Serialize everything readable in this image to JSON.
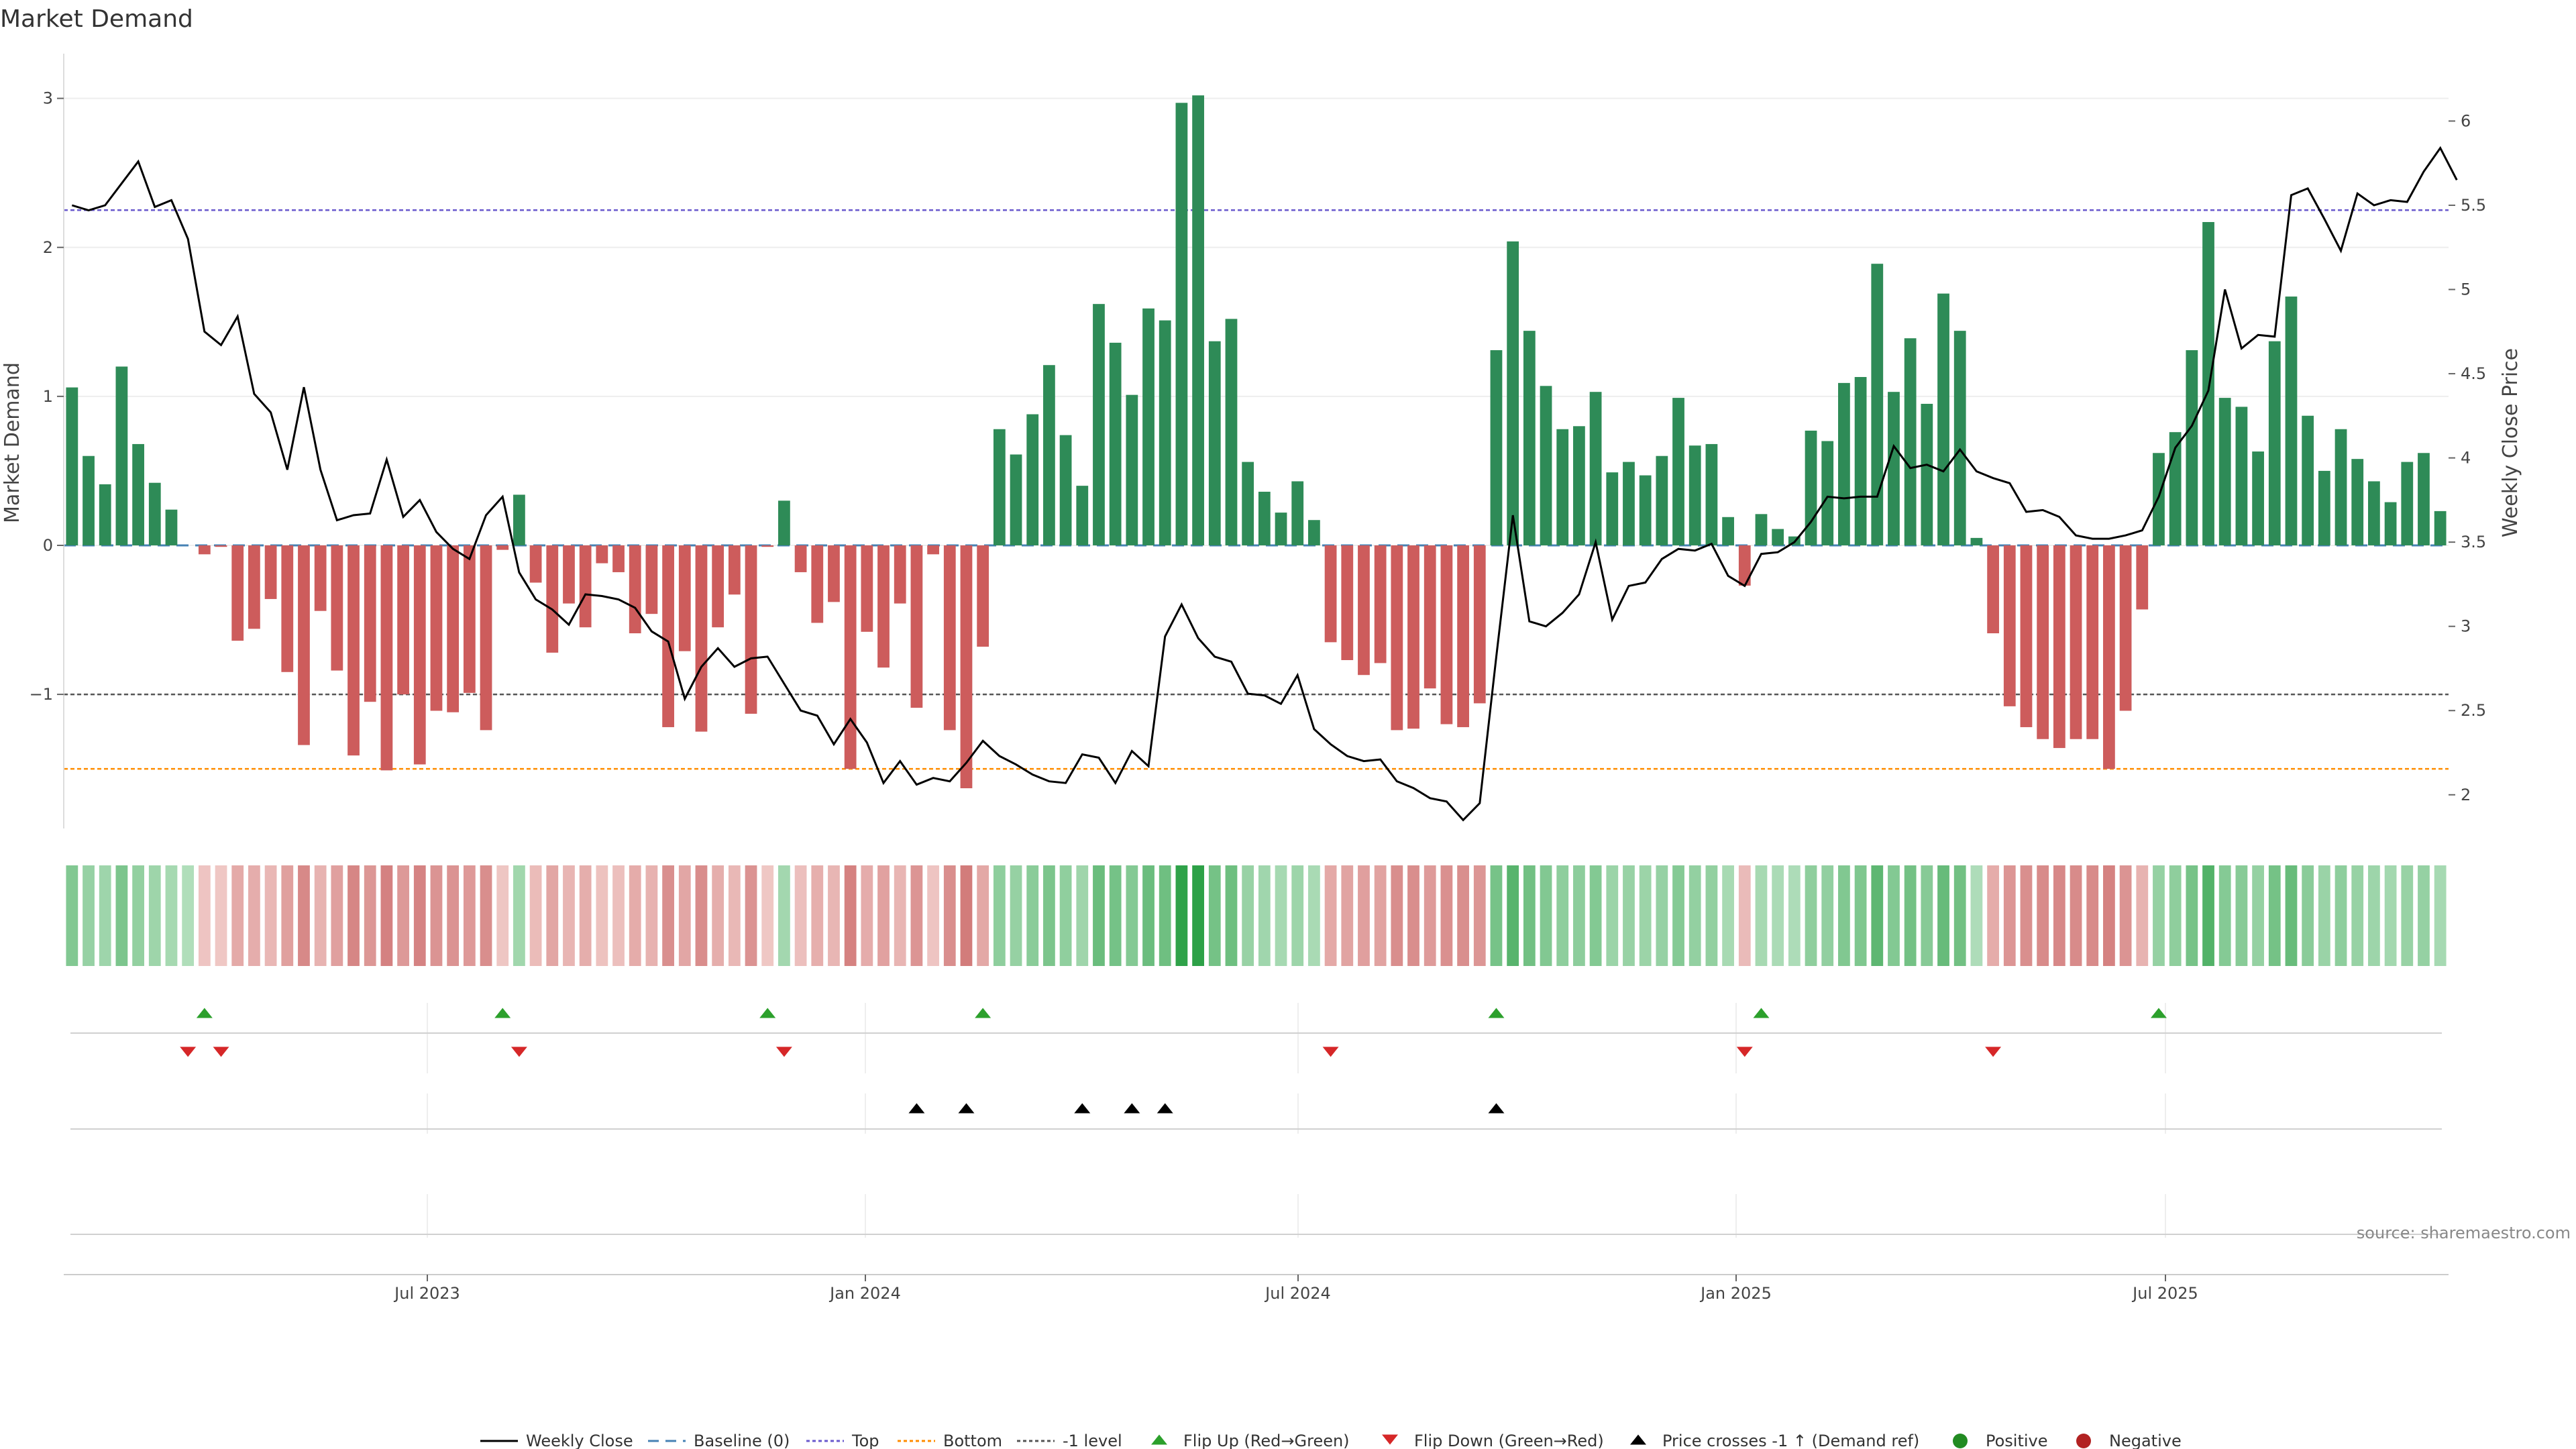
{
  "chart_data": {
    "type": "bar",
    "title": "Market Demand",
    "ylabel": "Market Demand",
    "y2label": "Weekly Close Price",
    "ylim": [
      -1.9,
      3.3
    ],
    "y2lim": [
      1.8,
      6.4
    ],
    "yticks": [
      "3",
      "2",
      "1",
      "0",
      "−1"
    ],
    "y2ticks": [
      "6",
      "5.5",
      "5",
      "4.5",
      "4",
      "3.5",
      "3",
      "2.5",
      "2"
    ],
    "xticks": [
      "Jul 2023",
      "Jan 2024",
      "Jul 2024",
      "Jan 2025",
      "Jul 2025"
    ],
    "reference_lines": {
      "top": 2.25,
      "baseline": 0,
      "bottom": -1.5,
      "minus_one": -1
    },
    "demand": [
      1.06,
      0.6,
      0.41,
      1.2,
      0.68,
      0.42,
      0.24,
      0,
      -0.06,
      -0.01,
      -0.64,
      -0.56,
      -0.36,
      -0.85,
      -1.34,
      -0.44,
      -0.84,
      -1.41,
      -1.05,
      -1.51,
      -1.0,
      -1.47,
      -1.11,
      -1.12,
      -0.99,
      -1.24,
      -0.03,
      0.34,
      -0.25,
      -0.72,
      -0.39,
      -0.55,
      -0.12,
      -0.18,
      -0.59,
      -0.46,
      -1.22,
      -0.71,
      -1.25,
      -0.55,
      -0.33,
      -1.13,
      -0.01,
      0.3,
      -0.18,
      -0.52,
      -0.38,
      -1.5,
      -0.58,
      -0.82,
      -0.39,
      -1.09,
      -0.06,
      -1.24,
      -1.63,
      -0.68,
      0.78,
      0.61,
      0.88,
      1.21,
      0.74,
      0.4,
      1.62,
      1.36,
      1.01,
      1.59,
      1.51,
      2.97,
      3.02,
      1.37,
      1.52,
      0.56,
      0.36,
      0.22,
      0.43,
      0.17,
      -0.65,
      -0.77,
      -0.87,
      -0.79,
      -1.24,
      -1.23,
      -0.96,
      -1.2,
      -1.22,
      -1.06,
      1.31,
      2.04,
      1.44,
      1.07,
      0.78,
      0.8,
      1.03,
      0.49,
      0.56,
      0.47,
      0.6,
      0.99,
      0.67,
      0.68,
      0.19,
      -0.27,
      0.21,
      0.11,
      0.06,
      0.77,
      0.7,
      1.09,
      1.13,
      1.89,
      1.03,
      1.39,
      0.95,
      1.69,
      1.44,
      0.05,
      -0.59,
      -1.08,
      -1.22,
      -1.3,
      -1.36,
      -1.3,
      -1.3,
      -1.5,
      -1.11,
      -0.43,
      0.62,
      0.76,
      1.31,
      2.17,
      0.99,
      0.93,
      0.63,
      1.37,
      1.67,
      0.87,
      0.5,
      0.78,
      0.58,
      0.43,
      0.29,
      0.56,
      0.62,
      0.23
    ],
    "close": [
      5.5,
      5.47,
      5.5,
      5.63,
      5.76,
      5.49,
      5.53,
      5.3,
      4.75,
      4.67,
      4.84,
      4.38,
      4.27,
      3.93,
      4.42,
      3.93,
      3.63,
      3.66,
      3.67,
      3.99,
      3.65,
      3.75,
      3.56,
      3.46,
      3.4,
      3.66,
      3.77,
      3.32,
      3.16,
      3.1,
      3.01,
      3.19,
      3.18,
      3.16,
      3.11,
      2.97,
      2.91,
      2.57,
      2.76,
      2.87,
      2.76,
      2.81,
      2.82,
      2.66,
      2.5,
      2.47,
      2.3,
      2.45,
      2.31,
      2.07,
      2.2,
      2.06,
      2.1,
      2.08,
      2.19,
      2.32,
      2.23,
      2.18,
      2.12,
      2.08,
      2.07,
      2.24,
      2.22,
      2.07,
      2.26,
      2.17,
      2.94,
      3.13,
      2.93,
      2.82,
      2.79,
      2.6,
      2.59,
      2.54,
      2.71,
      2.39,
      2.3,
      2.23,
      2.2,
      2.21,
      2.08,
      2.04,
      1.98,
      1.96,
      1.85,
      1.95,
      2.82,
      3.66,
      3.03,
      3.0,
      3.08,
      3.19,
      3.5,
      3.04,
      3.24,
      3.26,
      3.4,
      3.46,
      3.45,
      3.49,
      3.3,
      3.24,
      3.43,
      3.44,
      3.5,
      3.62,
      3.77,
      3.76,
      3.77,
      3.77,
      4.07,
      3.94,
      3.96,
      3.92,
      4.05,
      3.92,
      3.88,
      3.85,
      3.68,
      3.69,
      3.65,
      3.54,
      3.52,
      3.52,
      3.54,
      3.57,
      3.77,
      4.06,
      4.19,
      4.4,
      5.0,
      4.65,
      4.73,
      4.72,
      5.56,
      5.6,
      5.42,
      5.23,
      5.57,
      5.5,
      5.53,
      5.52,
      5.7,
      5.84,
      5.65
    ],
    "flip_up_indices": [
      8,
      26,
      42,
      55,
      86,
      102,
      126
    ],
    "flip_down_indices": [
      7,
      9,
      27,
      43,
      76,
      101,
      116
    ],
    "price_cross_indices": [
      51,
      54,
      61,
      64,
      66,
      86
    ],
    "source": "source: sharemaestro.com",
    "legend": [
      "Weekly Close",
      "Baseline (0)",
      "Top",
      "Bottom",
      "-1 level",
      "Flip Up (Red→Green)",
      "Flip Down (Green→Red)",
      "Price crosses -1 ↑ (Demand ref)",
      "Positive",
      "Negative"
    ]
  },
  "colors": {
    "positive": "#2e8b57",
    "negative": "#cd5c5c",
    "flip_up": "#2ca02c",
    "flip_down": "#d62728",
    "price": "#000000",
    "top": "#6a5acd",
    "bottom": "#ff8c00",
    "minus_one": "#555555",
    "baseline": "#4682b4",
    "dot_positive": "#228b22",
    "dot_negative": "#b22222"
  }
}
